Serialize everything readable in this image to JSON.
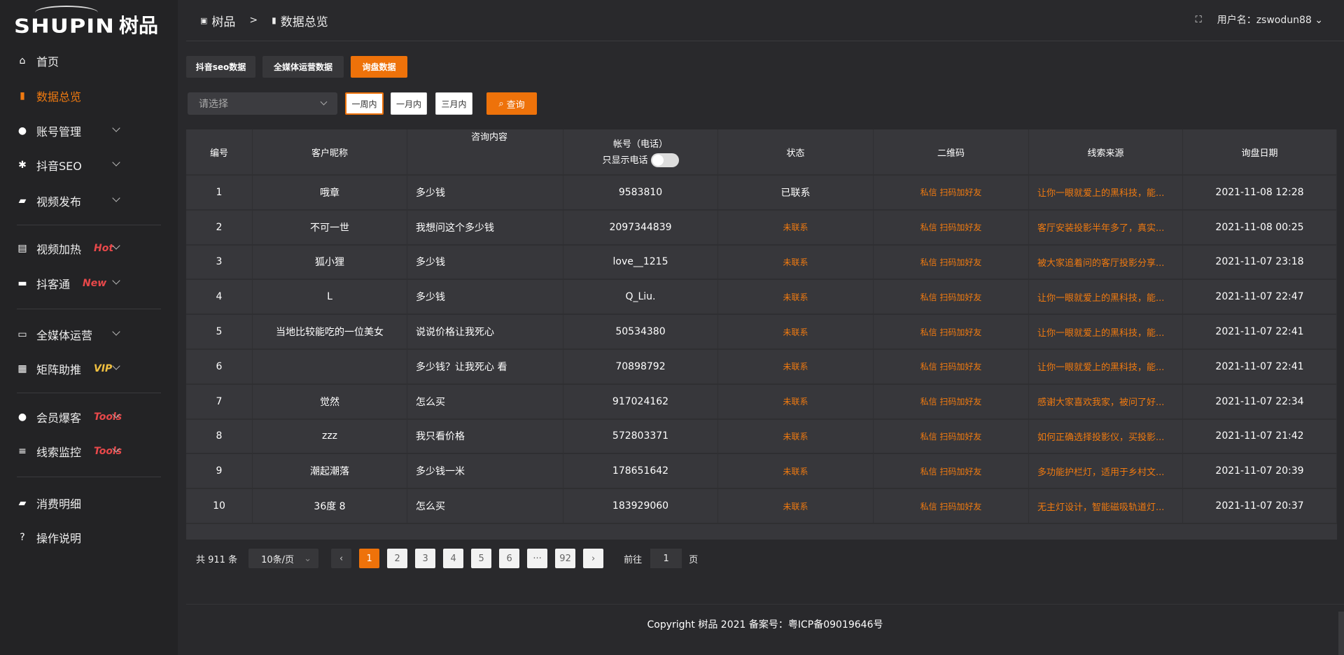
{
  "brand": {
    "logo_en": "SHUPIN",
    "logo_cn": "树品"
  },
  "sidebar": {
    "items": [
      {
        "label": "首页",
        "icon": "home-icon"
      },
      {
        "label": "数据总览",
        "icon": "bar-chart-icon",
        "active": true
      },
      {
        "label": "账号管理",
        "icon": "user-icon"
      },
      {
        "label": "抖音SEO",
        "icon": "gear-icon"
      },
      {
        "label": "视频发布",
        "icon": "video-icon"
      },
      {
        "label": "视频加热",
        "icon": "fire-icon",
        "tag": "Hot"
      },
      {
        "label": "抖客通",
        "icon": "chat-icon",
        "tag": "New"
      },
      {
        "label": "全媒体运营",
        "icon": "monitor-icon"
      },
      {
        "label": "矩阵助推",
        "icon": "grid-icon",
        "tag": "VIP"
      },
      {
        "label": "会员爆客",
        "icon": "member-icon",
        "tag": "Tools"
      },
      {
        "label": "线索监控",
        "icon": "sliders-icon",
        "tag": "Tools"
      },
      {
        "label": "消费明细",
        "icon": "wallet-icon"
      },
      {
        "label": "操作说明",
        "icon": "help-icon"
      }
    ]
  },
  "header": {
    "crumb_root": "树品",
    "crumb_sep": ">",
    "crumb_current": "数据总览",
    "user_label": "用户名：zswodun88"
  },
  "tabs": [
    "抖音seo数据",
    "全媒体运营数据",
    "询盘数据"
  ],
  "filters": {
    "select_placeholder": "请选择",
    "ranges": [
      "一周内",
      "一月内",
      "三月内"
    ],
    "query": "查询"
  },
  "table": {
    "headers": [
      "编号",
      "客户昵称",
      "咨询内容",
      "帐号（电话）",
      "状态",
      "二维码",
      "线索来源",
      "询盘日期"
    ],
    "phone_toggle_label": "只显示电话",
    "rows": [
      {
        "id": "1",
        "nick": "哦章",
        "content": "多少钱",
        "account": "9583810",
        "status": "已联系",
        "qr": "私信 扫码加好友",
        "source": "让你一眼就爱上的黑科技，能...",
        "date": "2021-11-08 12:28"
      },
      {
        "id": "2",
        "nick": "不可一世",
        "content": "我想问这个多少钱",
        "account": "2097344839",
        "status": "未联系",
        "qr": "私信 扫码加好友",
        "source": "客厅安装投影半年多了，真实...",
        "date": "2021-11-08 00:25"
      },
      {
        "id": "3",
        "nick": "狐小狸",
        "content": "多少钱",
        "account": "love__1215",
        "status": "未联系",
        "qr": "私信 扫码加好友",
        "source": "被大家追着问的客厅投影分享...",
        "date": "2021-11-07 23:18"
      },
      {
        "id": "4",
        "nick": "L",
        "content": "多少钱",
        "account": "Q_Liu.",
        "status": "未联系",
        "qr": "私信 扫码加好友",
        "source": "让你一眼就爱上的黑科技，能...",
        "date": "2021-11-07 22:47"
      },
      {
        "id": "5",
        "nick": "当地比较能吃的一位美女",
        "content": "说说价格让我死心",
        "account": "50534380",
        "status": "未联系",
        "qr": "私信 扫码加好友",
        "source": "让你一眼就爱上的黑科技，能...",
        "date": "2021-11-07 22:41"
      },
      {
        "id": "6",
        "nick": "",
        "content": "多少钱？让我死心 看",
        "account": "70898792",
        "status": "未联系",
        "qr": "私信 扫码加好友",
        "source": "让你一眼就爱上的黑科技，能...",
        "date": "2021-11-07 22:41"
      },
      {
        "id": "7",
        "nick": "觉然",
        "content": "怎么买",
        "account": "917024162",
        "status": "未联系",
        "qr": "私信 扫码加好友",
        "source": "感谢大家喜欢我家，被问了好...",
        "date": "2021-11-07 22:34"
      },
      {
        "id": "8",
        "nick": "zzz",
        "content": "我只看价格",
        "account": "572803371",
        "status": "未联系",
        "qr": "私信 扫码加好友",
        "source": "如何正确选择投影仪，买投影...",
        "date": "2021-11-07 21:42"
      },
      {
        "id": "9",
        "nick": "潮起潮落",
        "content": "多少钱一米",
        "account": "178651642",
        "status": "未联系",
        "qr": "私信 扫码加好友",
        "source": "多功能护栏灯，适用于乡村文...",
        "date": "2021-11-07 20:39"
      },
      {
        "id": "10",
        "nick": "36度 8",
        "content": "怎么买",
        "account": "183929060",
        "status": "未联系",
        "qr": "私信 扫码加好友",
        "source": "无主灯设计，智能磁吸轨道灯...",
        "date": "2021-11-07 20:37"
      }
    ]
  },
  "pagination": {
    "total": "共 911 条",
    "page_size": "10条/页",
    "pages": [
      "1",
      "2",
      "3",
      "4",
      "5",
      "6",
      "···",
      "92"
    ],
    "current": "1",
    "goto_label": "前往",
    "goto_value": "1",
    "goto_suffix": "页"
  },
  "footer": {
    "copyright": "Copyright 树品 2021 备案号：粤ICP备09019646号"
  },
  "colors": {
    "accent": "#ee720a",
    "contacted": "#ffffff",
    "uncontacted": "#f07a10"
  }
}
